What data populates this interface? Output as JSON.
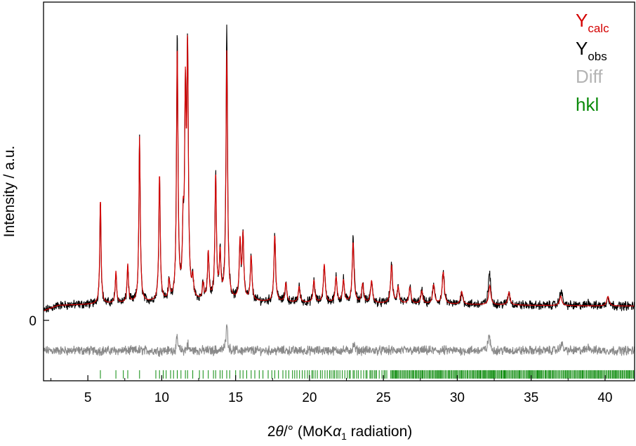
{
  "chart_data": {
    "type": "line",
    "xlabel": {
      "pre": "2",
      "theta": "θ",
      "deg": "/° (MoK",
      "alpha": "α",
      "sub": "1",
      "post": " radiation)"
    },
    "ylabel": "Intensity / a.u.",
    "xlim": [
      2,
      42
    ],
    "ylim": [
      -0.19,
      1.0
    ],
    "x_ticks": [
      5,
      10,
      15,
      20,
      25,
      30,
      35,
      40
    ],
    "y_tick_label": "0",
    "grid": false,
    "legend_position": "top-right",
    "legend": [
      {
        "base": "Y",
        "sub": "calc",
        "color": "#d40000"
      },
      {
        "base": "Y",
        "sub": "obs",
        "color": "#000000"
      },
      {
        "base": "Diff",
        "sub": "",
        "color": "#b4b4b4"
      },
      {
        "base": "hkl",
        "sub": "",
        "color": "#0a8a0a"
      }
    ],
    "series": [
      {
        "key": "calc",
        "color": "#d40000"
      },
      {
        "key": "obs",
        "color": "#000000"
      },
      {
        "key": "diff",
        "color": "#8a8a8a",
        "offset": -0.095
      },
      {
        "key": "hkl",
        "color": "#0a8a0a",
        "y": -0.17
      }
    ],
    "background": [
      [
        2.0,
        0.03
      ],
      [
        3.0,
        0.047
      ],
      [
        5.0,
        0.05
      ],
      [
        10.0,
        0.058
      ],
      [
        15.0,
        0.06
      ],
      [
        20.0,
        0.055
      ],
      [
        25.0,
        0.053
      ],
      [
        30.0,
        0.05
      ],
      [
        35.0,
        0.047
      ],
      [
        40.0,
        0.045
      ],
      [
        42.0,
        0.045
      ]
    ],
    "peaks": [
      [
        5.85,
        0.33
      ],
      [
        6.9,
        0.1
      ],
      [
        7.7,
        0.12
      ],
      [
        8.5,
        0.52
      ],
      [
        9.85,
        0.4
      ],
      [
        10.5,
        0.06
      ],
      [
        11.05,
        0.79
      ],
      [
        11.45,
        0.2
      ],
      [
        11.6,
        0.6
      ],
      [
        11.75,
        0.75
      ],
      [
        12.1,
        0.06
      ],
      [
        12.8,
        0.05
      ],
      [
        13.15,
        0.15
      ],
      [
        13.65,
        0.39
      ],
      [
        13.95,
        0.14
      ],
      [
        14.4,
        0.78
      ],
      [
        15.3,
        0.18
      ],
      [
        15.5,
        0.2
      ],
      [
        16.05,
        0.14
      ],
      [
        17.65,
        0.21
      ],
      [
        18.4,
        0.06
      ],
      [
        19.3,
        0.05
      ],
      [
        20.3,
        0.07
      ],
      [
        21.0,
        0.12
      ],
      [
        21.8,
        0.08
      ],
      [
        22.3,
        0.07
      ],
      [
        22.95,
        0.19
      ],
      [
        23.6,
        0.06
      ],
      [
        24.2,
        0.07
      ],
      [
        25.55,
        0.12
      ],
      [
        26.0,
        0.05
      ],
      [
        26.8,
        0.05
      ],
      [
        27.6,
        0.04
      ],
      [
        28.4,
        0.06
      ],
      [
        29.05,
        0.1
      ],
      [
        30.3,
        0.04
      ],
      [
        32.2,
        0.06
      ],
      [
        33.5,
        0.04
      ],
      [
        37.0,
        0.03
      ],
      [
        40.2,
        0.03
      ]
    ],
    "obs_extra": [
      [
        32.15,
        0.05
      ],
      [
        37.05,
        0.025
      ],
      [
        38.9,
        0.015
      ],
      [
        23.0,
        0.02
      ],
      [
        14.4,
        0.1
      ],
      [
        11.05,
        0.04
      ],
      [
        11.75,
        0.02
      ]
    ],
    "hkl_positions": [
      5.85,
      6.9,
      7.4,
      7.7,
      8.5,
      9.6,
      9.85,
      10.1,
      10.3,
      10.6,
      10.8,
      11.05,
      11.3,
      11.6,
      11.75,
      12.1,
      12.55,
      12.8,
      13.15,
      13.5,
      13.65,
      13.95,
      14.1,
      14.4,
      14.6,
      15.0,
      15.3,
      15.5,
      15.75,
      16.05,
      16.3,
      16.6,
      16.85,
      17.2,
      17.45,
      17.65,
      17.9,
      18.2,
      18.4,
      18.6,
      18.85
    ]
  }
}
